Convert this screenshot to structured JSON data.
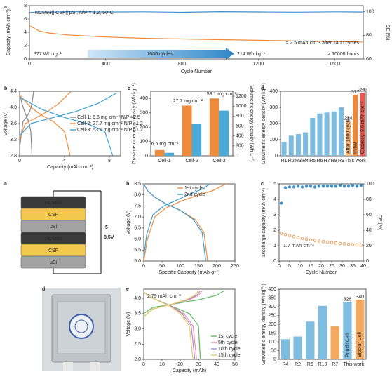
{
  "chart_data": [
    {
      "type": "line",
      "label": "a",
      "annotations": [
        "NCM83|| CSF|| μSi, N/P = 1.2, 50°C",
        "> 2.5 mAh·cm⁻² after 1400 cycles",
        "377 Wh·kg⁻¹",
        "1000 cycles",
        "214 Wh·kg⁻¹",
        "> 10000 hours"
      ],
      "xlabel": "Cycle Number",
      "ylabel": "Capacity (mAh·cm⁻²)",
      "y2label": "CE (%)",
      "ylabel_color": "#333333",
      "y2label_color": "#3d8fd1",
      "xlim": [
        0,
        1750
      ],
      "xticks": [
        0,
        400,
        800,
        1200,
        1600
      ],
      "ylim": [
        0,
        8
      ],
      "yticks": [
        0,
        2,
        4,
        6,
        8
      ],
      "y2lim": [
        60,
        105
      ],
      "y2ticks": [
        60,
        80,
        100
      ],
      "series": [
        {
          "color": "#ee8a3b",
          "x": [
            0,
            50,
            100,
            200,
            400,
            600,
            800,
            1000,
            1200,
            1400,
            1600,
            1750
          ],
          "values": [
            5.0,
            4.2,
            3.9,
            3.6,
            3.3,
            3.1,
            3.0,
            2.9,
            2.8,
            2.7,
            2.6,
            2.55
          ]
        },
        {
          "color": "#3d8fd1",
          "axis": "y2",
          "x": [
            0,
            50,
            100,
            200,
            400,
            600,
            800,
            1000,
            1200,
            1400,
            1600,
            1750
          ],
          "values": [
            99.2,
            99.8,
            99.5,
            99.9,
            99.6,
            99.8,
            99.4,
            99.9,
            99.7,
            99.5,
            99.8,
            99.6
          ]
        }
      ]
    },
    {
      "type": "line",
      "label": "b",
      "xlabel": "Capacity (mAh·cm⁻²)",
      "ylabel": "Voltage (V)",
      "xlim": [
        0,
        9
      ],
      "xticks": [
        0,
        4,
        8
      ],
      "ylim": [
        2.8,
        4.4
      ],
      "yticks": [
        2.8,
        3.2,
        3.6,
        {
          "value": 4,
          "label": "4.0"
        },
        4.4
      ],
      "legend": "center right",
      "series": [
        {
          "name": "Cell-1: 6.5 mg cm⁻² N/P ≈2.5",
          "color": "#888888",
          "x": [
            0,
            0.3,
            0.6,
            0.9,
            1.1,
            1.25,
            null,
            0,
            0.2,
            0.5,
            0.8,
            1.0,
            1.1
          ],
          "values": [
            3.0,
            3.65,
            3.75,
            3.9,
            4.1,
            4.4,
            null,
            4.35,
            4.1,
            3.85,
            3.65,
            3.4,
            2.8
          ]
        },
        {
          "name": "Cell-2: 27.7 mg cm⁻² N/P ≈1.2",
          "color": "#ee8a3b",
          "x": [
            0,
            0.5,
            1.5,
            2.5,
            3.5,
            4.6,
            null,
            0,
            1,
            2,
            3,
            4,
            4.5
          ],
          "values": [
            3.2,
            3.6,
            3.75,
            3.9,
            4.1,
            4.4,
            null,
            4.3,
            4.0,
            3.8,
            3.65,
            3.4,
            2.8
          ]
        },
        {
          "name": "Cell-3: 53.1 mg cm⁻² N/P ≈1.2",
          "color": "#3d9fd1",
          "x": [
            0,
            1,
            3,
            5,
            7,
            8.6,
            null,
            0,
            2,
            4,
            6,
            7.6,
            8.3
          ],
          "values": [
            3.3,
            3.6,
            3.75,
            3.9,
            4.1,
            4.35,
            null,
            4.25,
            3.95,
            3.75,
            3.6,
            3.4,
            2.8
          ]
        }
      ]
    },
    {
      "type": "bar",
      "label": "c",
      "categories": [
        "Cell-1",
        "Cell-2",
        "Cell-3"
      ],
      "annotations": [
        "6.5 mg cm⁻²",
        "27.7 mg cm⁻²",
        "53.1 mg cm⁻²"
      ],
      "ylabel": "Gravimetric energy density (Wh kg⁻¹)",
      "y2label": "Volumetric energy density (Wh L⁻¹)",
      "ylabel_color": "#ee8a3b",
      "y2label_color": "#3d9fd1",
      "ylim": [
        0,
        450
      ],
      "yticks": [
        0,
        100,
        200,
        300,
        400
      ],
      "y2lim": [
        0,
        1300
      ],
      "y2ticks": [
        0,
        200,
        400,
        600,
        800,
        1000,
        1200
      ],
      "series": [
        {
          "color": "#ee8a3b",
          "values": [
            40,
            350,
            400
          ]
        },
        {
          "color": "#4aaad8",
          "axis": "y2",
          "values": [
            60,
            650,
            910
          ]
        }
      ]
    },
    {
      "type": "bar",
      "label": "d",
      "ylabel": "Gravimetric energy density (Wh kg⁻¹)",
      "categories": [
        "R1",
        "R2",
        "R3",
        "R4",
        "R5",
        "R6",
        "R7",
        "R8",
        "R9",
        null,
        null,
        null
      ],
      "group_label": "This work",
      "group_label_color": "#ee8a3b",
      "ylim": [
        0,
        400
      ],
      "yticks": [
        0,
        100,
        200,
        300,
        400
      ],
      "series": [
        {
          "colors": [
            "#7fbde0",
            "#7fbde0",
            "#7fbde0",
            "#7fbde0",
            "#7fbde0",
            "#7fbde0",
            "#7fbde0",
            "#7fbde0",
            "#7fbde0",
            "#f4b47c",
            "#ee8a3b",
            "#e8584f"
          ],
          "values": [
            85,
            125,
            135,
            145,
            235,
            262,
            268,
            275,
            300,
            214,
            377,
            390
          ],
          "value_labels": [
            null,
            null,
            null,
            null,
            null,
            null,
            null,
            null,
            null,
            "214",
            "377",
            "390"
          ],
          "bar_texts": [
            null,
            null,
            null,
            null,
            null,
            null,
            null,
            null,
            null,
            "After 1000 cycles",
            "Initial",
            "Capacity: 8.6 mAh cm⁻²"
          ]
        }
      ]
    },
    {
      "type": "diagram",
      "label": "a",
      "layers": [
        "NCM83",
        "CSF",
        "μSi",
        "NCM83",
        "CSF",
        "μSi"
      ],
      "layer_colors": [
        "#3b3b3b",
        "#f2c94c",
        "#a3a3a3",
        "#3b3b3b",
        "#f2c94c",
        "#a3a3a3"
      ],
      "annotations": [
        "5",
        "8.5V"
      ]
    },
    {
      "type": "line",
      "label": "b",
      "xlabel": "Specific Capacity (mAh·g⁻¹)",
      "ylabel": "Voltage (V)",
      "xlim": [
        0,
        250
      ],
      "xticks": [
        0,
        50,
        100,
        150,
        200,
        250
      ],
      "ylim": [
        5,
        8.5
      ],
      "yticks": [
        {
          "value": 5,
          "label": "5.0"
        },
        5.5,
        {
          "value": 6,
          "label": "6.0"
        },
        6.5,
        {
          "value": 7,
          "label": "7.0"
        },
        7.5,
        {
          "value": 8,
          "label": "8.0"
        },
        8.5
      ],
      "legend": "upper center",
      "series": [
        {
          "name": "1st cycle",
          "color": "#ee8a3b",
          "x": [
            0,
            10,
            30,
            60,
            100,
            150,
            190,
            225,
            null,
            0,
            10,
            30,
            60,
            100,
            140,
            165,
            175
          ],
          "values": [
            5.0,
            6.0,
            7.0,
            7.4,
            7.7,
            8.0,
            8.2,
            8.5,
            null,
            8.5,
            8.2,
            7.9,
            7.6,
            7.3,
            6.9,
            6.3,
            5.0
          ]
        },
        {
          "name": "2nd cycle",
          "color": "#3d9fd1",
          "x": [
            0,
            8,
            25,
            55,
            95,
            135,
            165,
            180,
            null,
            0,
            10,
            30,
            60,
            100,
            135,
            160,
            170
          ],
          "values": [
            5.2,
            6.2,
            7.1,
            7.5,
            7.8,
            8.1,
            8.3,
            8.5,
            null,
            8.5,
            8.2,
            7.9,
            7.6,
            7.3,
            6.9,
            6.3,
            5.0
          ]
        }
      ]
    },
    {
      "type": "line",
      "label": "c",
      "annotations": [
        "1.7 mAh·cm⁻²"
      ],
      "xlabel": "Cycle Number",
      "ylabel": "Discharge capacity (mAh·cm⁻²)",
      "y2label": "CE (%)",
      "xlim": [
        0,
        40
      ],
      "xticks": [
        0,
        5,
        10,
        15,
        20,
        25,
        30,
        35,
        40
      ],
      "ylim": [
        0,
        5
      ],
      "yticks": [
        0,
        1,
        2,
        3,
        4,
        5
      ],
      "y2lim": [
        0,
        100
      ],
      "y2ticks": [
        0,
        20,
        40,
        60,
        80,
        100
      ],
      "series": [
        {
          "color": "#ee8a3b",
          "marker": "open",
          "x": [
            1,
            3,
            5,
            7,
            9,
            11,
            13,
            15,
            17,
            19,
            21,
            23,
            25,
            27,
            29,
            31,
            33,
            35,
            37,
            39
          ],
          "values": [
            1.8,
            1.72,
            1.65,
            1.58,
            1.52,
            1.47,
            1.42,
            1.38,
            1.34,
            1.3,
            1.26,
            1.23,
            1.2,
            1.17,
            1.14,
            1.12,
            1.09,
            1.07,
            1.05,
            1.03
          ]
        },
        {
          "color": "#3d8fd1",
          "marker": "filled",
          "axis": "y2",
          "x": [
            1,
            3,
            5,
            7,
            9,
            11,
            13,
            15,
            17,
            19,
            21,
            23,
            25,
            27,
            29,
            31,
            33,
            35,
            37,
            39
          ],
          "values": [
            75,
            95,
            96,
            96,
            97,
            96,
            97,
            97,
            96,
            97,
            97,
            97,
            97,
            97,
            98,
            97,
            97,
            98,
            97,
            98
          ]
        }
      ]
    },
    {
      "type": "photo",
      "label": "d"
    },
    {
      "type": "line",
      "label": "e",
      "annotations": [
        "2.79 mAh·cm⁻²"
      ],
      "xlabel": "Capacity (mAh)",
      "ylabel": "Voltage (V)",
      "xlim": [
        0,
        50
      ],
      "xticks": [
        0,
        10,
        20,
        30,
        40,
        50
      ],
      "ylim": [
        2,
        4.3
      ],
      "yticks": [
        {
          "value": 2,
          "label": "2.0"
        },
        2.5,
        {
          "value": 3,
          "label": "3.0"
        },
        3.5,
        {
          "value": 4,
          "label": "4.0"
        }
      ],
      "legend": "lower right",
      "series": [
        {
          "name": "1st cycle",
          "color": "#5cb85c",
          "x": [
            0,
            5,
            15,
            30,
            40,
            44,
            null,
            0,
            5,
            15,
            25,
            30,
            31
          ],
          "values": [
            3.5,
            3.7,
            3.8,
            3.95,
            4.1,
            4.25,
            null,
            4.2,
            4.0,
            3.75,
            3.5,
            3.1,
            2.0
          ]
        },
        {
          "name": "5th cycle",
          "color": "#f08cb0",
          "x": [
            0,
            5,
            15,
            25,
            30,
            32,
            null,
            0,
            5,
            15,
            22,
            27,
            29
          ],
          "values": [
            3.4,
            3.65,
            3.8,
            3.95,
            4.1,
            4.25,
            null,
            4.2,
            4.0,
            3.75,
            3.5,
            3.1,
            2.0
          ]
        },
        {
          "name": "10th cycle",
          "color": "#a58bd8",
          "x": [
            0,
            5,
            15,
            24,
            29,
            31,
            null,
            0,
            5,
            15,
            21,
            26,
            28
          ],
          "values": [
            3.4,
            3.65,
            3.8,
            3.95,
            4.1,
            4.25,
            null,
            4.2,
            4.0,
            3.75,
            3.5,
            3.1,
            2.0
          ]
        },
        {
          "name": "15th cycle",
          "color": "#e6cf5a",
          "x": [
            0,
            5,
            15,
            23,
            28,
            30,
            null,
            0,
            5,
            14,
            20,
            25,
            27
          ],
          "values": [
            3.4,
            3.65,
            3.8,
            3.95,
            4.1,
            4.25,
            null,
            4.2,
            4.0,
            3.75,
            3.5,
            3.1,
            2.0
          ]
        }
      ]
    },
    {
      "type": "bar",
      "label": "f",
      "ylabel": "Gravimetric energy density (Wh kg⁻¹)",
      "categories": [
        "R4",
        "R2",
        "R6",
        "R10",
        "R7",
        null,
        null
      ],
      "group_label": "This work",
      "group_label_color": "#ee8a3b",
      "ylim": [
        0,
        400
      ],
      "yticks": [
        0,
        50,
        100,
        150,
        200,
        250,
        300,
        350,
        400
      ],
      "series": [
        {
          "colors": [
            "#7fbde0",
            "#7fbde0",
            "#7fbde0",
            "#7fbde0",
            "#f4a95e",
            "#7fbde0",
            "#f4a95e"
          ],
          "values": [
            115,
            130,
            215,
            305,
            190,
            326,
            340
          ],
          "value_labels": [
            null,
            null,
            null,
            null,
            null,
            "326",
            "340"
          ],
          "bar_texts": [
            null,
            null,
            null,
            null,
            null,
            "Pouch Cell",
            "Bipolar Cell"
          ]
        }
      ]
    }
  ]
}
